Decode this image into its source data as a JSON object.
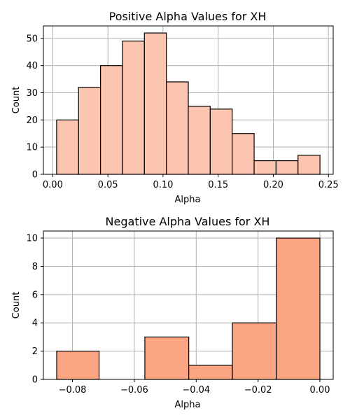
{
  "chart_data": [
    {
      "type": "bar",
      "title": "Positive Alpha Values for XH",
      "xlabel": "Alpha",
      "ylabel": "Count",
      "bin_edges": [
        0.0035,
        0.0234,
        0.0433,
        0.0632,
        0.0831,
        0.103,
        0.1229,
        0.1428,
        0.1627,
        0.1826,
        0.2025,
        0.2224,
        0.2423
      ],
      "values": [
        20,
        32,
        40,
        49,
        52,
        34,
        25,
        24,
        15,
        5,
        5,
        7
      ],
      "xlim": [
        -0.0085,
        0.2543
      ],
      "ylim": [
        0,
        54.6
      ],
      "xticks": [
        0.0,
        0.05,
        0.1,
        0.15,
        0.2,
        0.25
      ],
      "xtick_labels": [
        "0.00",
        "0.05",
        "0.10",
        "0.15",
        "0.20",
        "0.25"
      ],
      "yticks": [
        0,
        10,
        20,
        30,
        40,
        50
      ],
      "ytick_labels": [
        "0",
        "10",
        "20",
        "30",
        "40",
        "50"
      ],
      "grid": true,
      "bar_color": "#fcc5b0",
      "edge_color": "#000000"
    },
    {
      "type": "bar",
      "title": "Negative Alpha Values for XH",
      "xlabel": "Alpha",
      "ylabel": "Count",
      "bin_edges": [
        -0.0851,
        -0.0714,
        -0.0566,
        -0.0424,
        -0.0283,
        -0.0141,
        0.0
      ],
      "values": [
        2,
        0,
        3,
        1,
        4,
        10
      ],
      "xlim": [
        -0.0894,
        0.0043
      ],
      "ylim": [
        0,
        10.5
      ],
      "xticks": [
        -0.08,
        -0.06,
        -0.04,
        -0.02,
        0.0
      ],
      "xtick_labels": [
        "−0.08",
        "−0.06",
        "−0.04",
        "−0.02",
        "0.00"
      ],
      "yticks": [
        0,
        2,
        4,
        6,
        8,
        10
      ],
      "ytick_labels": [
        "0",
        "2",
        "4",
        "6",
        "8",
        "10"
      ],
      "grid": true,
      "bar_color": "#fca582",
      "edge_color": "#000000"
    }
  ]
}
